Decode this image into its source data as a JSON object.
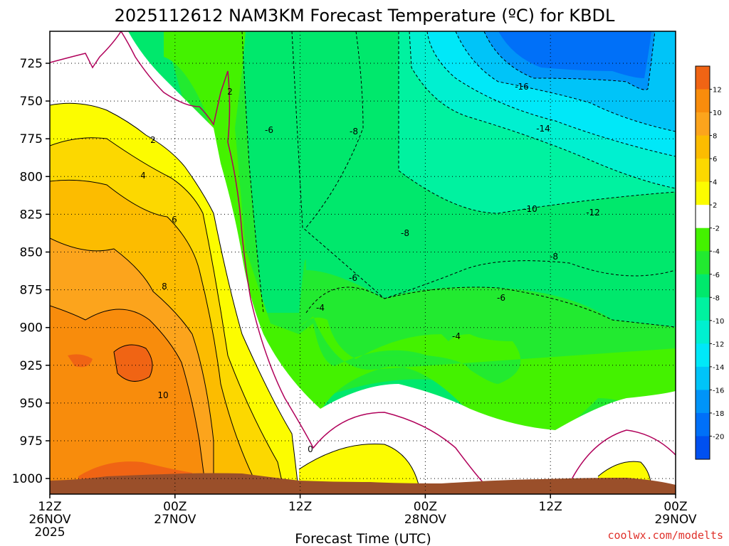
{
  "chart_data": {
    "type": "time-height contour",
    "title": "2025112612 NAM3KM Forecast Temperature (ºC) for KBDL",
    "xlabel": "Forecast Time (UTC)",
    "ylabel": "Pressure (hPa)",
    "y_ticks": [
      "725",
      "750",
      "775",
      "800",
      "825",
      "850",
      "875",
      "900",
      "925",
      "950",
      "975",
      "1000"
    ],
    "ylim": [
      1010,
      712
    ],
    "x_ticks": [
      {
        "line1": "12Z",
        "line2": "26NOV",
        "line3": "2025"
      },
      {
        "line1": "00Z",
        "line2": "27NOV",
        "line3": ""
      },
      {
        "line1": "12Z",
        "line2": "",
        "line3": ""
      },
      {
        "line1": "00Z",
        "line2": "28NOV",
        "line3": ""
      },
      {
        "line1": "12Z",
        "line2": "",
        "line3": ""
      },
      {
        "line1": "00Z",
        "line2": "29NOV",
        "line3": ""
      }
    ],
    "colorbar": {
      "labels": [
        "12",
        "10",
        "8",
        "6",
        "4",
        "2",
        "-2",
        "-4",
        "-6",
        "-8",
        "-10",
        "-12",
        "-14",
        "-16",
        "-18",
        "-20"
      ],
      "colors": [
        "#f06414",
        "#f88c0c",
        "#fca41c",
        "#fcbc00",
        "#fcd800",
        "#fcfc00",
        "#ffffff",
        "#44f200",
        "#22ea30",
        "#00e86c",
        "#00f2a0",
        "#00f0d0",
        "#00e8f8",
        "#00c4f8",
        "#0094f8",
        "#0070f8",
        "#0050f0"
      ]
    },
    "contour_labels": [
      "2",
      "-2",
      "-6",
      "-8",
      "2",
      "4",
      "-16",
      "-14",
      "6",
      "-10",
      "-12",
      "-8",
      "8",
      "-6",
      "-4",
      "-6",
      "-8",
      "-4",
      "10",
      "0"
    ]
  },
  "footer": {
    "credit": "coolwx.com/modelts"
  }
}
